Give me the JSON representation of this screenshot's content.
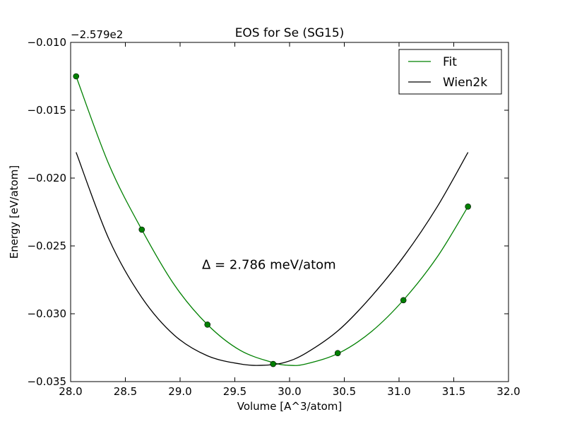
{
  "chart_data": {
    "type": "line",
    "title": "EOS for Se (SG15)",
    "xlabel": "Volume [A^3/atom]",
    "ylabel": "Energy [eV/atom]",
    "y_offset_label": "−2.579e2",
    "xlim": [
      28.0,
      32.0
    ],
    "ylim": [
      -0.035,
      -0.01
    ],
    "x_ticks": [
      28.0,
      28.5,
      29.0,
      29.5,
      30.0,
      30.5,
      31.0,
      31.5,
      32.0
    ],
    "x_tick_labels": [
      "28.0",
      "28.5",
      "29.0",
      "29.5",
      "30.0",
      "30.5",
      "31.0",
      "31.5",
      "32.0"
    ],
    "y_ticks": [
      -0.01,
      -0.015,
      -0.02,
      -0.025,
      -0.03,
      -0.035
    ],
    "y_tick_labels": [
      "−0.010",
      "−0.015",
      "−0.020",
      "−0.025",
      "−0.030",
      "−0.035"
    ],
    "grid": false,
    "legend_position": "top-right",
    "series": [
      {
        "name": "Fit",
        "color": "#008000",
        "kind": "line",
        "x": [
          28.05,
          28.35,
          28.65,
          28.95,
          29.25,
          29.55,
          29.85,
          30.0,
          30.15,
          30.45,
          30.75,
          31.05,
          31.35,
          31.63
        ],
        "y": [
          -0.0125,
          -0.019,
          -0.0238,
          -0.0279,
          -0.0308,
          -0.0327,
          -0.0336,
          -0.0338,
          -0.0337,
          -0.0329,
          -0.0313,
          -0.0289,
          -0.0258,
          -0.0221
        ]
      },
      {
        "name": "Wien2k",
        "color": "#000000",
        "kind": "line",
        "x": [
          28.05,
          28.35,
          28.65,
          28.95,
          29.25,
          29.55,
          29.75,
          29.95,
          30.15,
          30.45,
          30.75,
          31.05,
          31.35,
          31.63
        ],
        "y": [
          -0.0181,
          -0.0245,
          -0.0288,
          -0.0316,
          -0.0331,
          -0.0337,
          -0.0338,
          -0.0336,
          -0.0329,
          -0.0312,
          -0.0287,
          -0.0257,
          -0.0221,
          -0.0181
        ]
      },
      {
        "name": "",
        "color": "#008000",
        "kind": "points",
        "x": [
          28.05,
          28.65,
          29.25,
          29.85,
          30.44,
          31.04,
          31.63
        ],
        "y": [
          -0.0125,
          -0.0238,
          -0.0308,
          -0.0337,
          -0.0329,
          -0.029,
          -0.0221
        ]
      }
    ],
    "annotations": [
      {
        "text": "Δ = 2.786 meV/atom",
        "x": 29.2,
        "y": -0.0267
      }
    ]
  }
}
